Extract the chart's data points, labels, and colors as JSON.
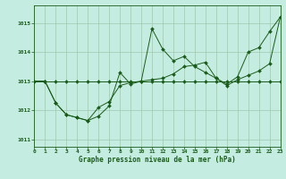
{
  "title": "Graphe pression niveau de la mer (hPa)",
  "bg_color": "#c5ece0",
  "line_color": "#1a5c1a",
  "grid_color": "#a0c8b0",
  "xlim": [
    0,
    23
  ],
  "ylim": [
    1010.75,
    1015.6
  ],
  "yticks": [
    1011,
    1012,
    1013,
    1014,
    1015
  ],
  "xticks": [
    0,
    1,
    2,
    3,
    4,
    5,
    6,
    7,
    8,
    9,
    10,
    11,
    12,
    13,
    14,
    15,
    16,
    17,
    18,
    19,
    20,
    21,
    22,
    23
  ],
  "series1_y": [
    1013.0,
    1013.0,
    1012.25,
    1011.85,
    1011.75,
    1011.65,
    1011.8,
    1012.15,
    1013.3,
    1012.9,
    1013.0,
    1014.8,
    1014.1,
    1013.7,
    1013.85,
    1013.5,
    1013.3,
    1013.1,
    1012.9,
    1013.15,
    1014.0,
    1014.15,
    1014.7,
    1015.2
  ],
  "series2_y": [
    1013.0,
    1013.0,
    1012.25,
    1011.85,
    1011.75,
    1011.65,
    1012.1,
    1012.3,
    1012.85,
    1012.95,
    1013.0,
    1013.05,
    1013.1,
    1013.25,
    1013.5,
    1013.55,
    1013.65,
    1013.1,
    1012.85,
    1013.05,
    1013.2,
    1013.35,
    1013.6,
    1015.2
  ],
  "series3_y": [
    1013.0,
    1013.0,
    1013.0,
    1013.0,
    1013.0,
    1013.0,
    1013.0,
    1013.0,
    1013.0,
    1013.0,
    1013.0,
    1013.0,
    1013.0,
    1013.0,
    1013.0,
    1013.0,
    1013.0,
    1013.0,
    1013.0,
    1013.0,
    1013.0,
    1013.0,
    1013.0,
    1013.0
  ]
}
